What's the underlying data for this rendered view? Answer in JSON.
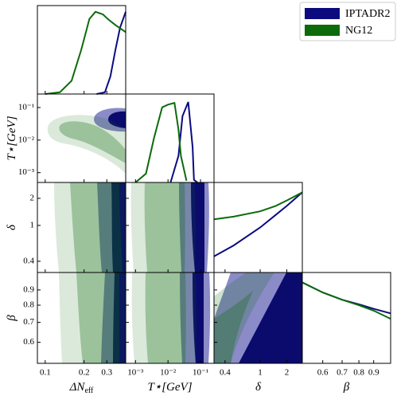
{
  "chart_data": {
    "type": "corner",
    "series": [
      {
        "name": "IPTADR2",
        "color": "#0b0b7f"
      },
      {
        "name": "NG12",
        "color": "#0b6b0b"
      }
    ],
    "params": [
      {
        "label": "ΔN",
        "label_sub": "eff",
        "lim": [
          0.087,
          0.42
        ],
        "log": true,
        "ticks": [
          0.1,
          0.2,
          0.3
        ]
      },
      {
        "label": "T⋆[GeV]",
        "lim": [
          0.0005,
          0.26
        ],
        "log": true,
        "ticks": [
          {
            "value": 0.001,
            "label": "10⁻³"
          },
          {
            "value": 0.01,
            "label": "10⁻²"
          },
          {
            "value": 0.1,
            "label": "10⁻¹"
          }
        ]
      },
      {
        "label": "δ",
        "lim": [
          0.3,
          3.0
        ],
        "log": true,
        "ticks": [
          0.4,
          1,
          2
        ]
      },
      {
        "label": "β",
        "lim": [
          0.51,
          1.03
        ],
        "log": true,
        "ticks": [
          0.6,
          0.7,
          0.8,
          0.9
        ]
      }
    ],
    "diagonals": [
      {
        "curves": [
          {
            "x": [
              0.25,
              0.29,
              0.32,
              0.35,
              0.38,
              0.42
            ],
            "values": [
              0,
              0.02,
              0.2,
              0.5,
              0.75,
              0.93
            ]
          },
          {
            "x": [
              0.1,
              0.13,
              0.16,
              0.19,
              0.22,
              0.245,
              0.28,
              0.31,
              0.35,
              0.42
            ],
            "values": [
              0,
              0.02,
              0.15,
              0.5,
              0.85,
              0.93,
              0.9,
              0.84,
              0.78,
              0.7
            ]
          }
        ]
      },
      {
        "curves": [
          {
            "x": [
              0.012,
              0.021,
              0.028,
              0.042,
              0.057,
              0.063,
              0.08
            ],
            "values": [
              0,
              0.3,
              0.75,
              0.91,
              0.4,
              0.03,
              0
            ]
          },
          {
            "x": [
              0.001,
              0.0021,
              0.0037,
              0.0066,
              0.01,
              0.0158,
              0.021,
              0.025,
              0.037
            ],
            "values": [
              0,
              0.1,
              0.5,
              0.85,
              0.88,
              0.9,
              0.6,
              0.3,
              0.02
            ]
          }
        ]
      },
      {
        "curves": [
          {
            "x": [
              0.3,
              0.5,
              1,
              1.5,
              2,
              3.0
            ],
            "values": [
              0.18,
              0.3,
              0.5,
              0.64,
              0.74,
              0.89
            ]
          },
          {
            "x": [
              0.3,
              0.5,
              1,
              1.5,
              2,
              3.0
            ],
            "values": [
              0.59,
              0.62,
              0.68,
              0.74,
              0.8,
              0.89
            ]
          }
        ]
      },
      {
        "curves": [
          {
            "x": [
              0.51,
              0.6,
              0.7,
              0.8,
              0.9,
              1.03
            ],
            "values": [
              0.89,
              0.78,
              0.7,
              0.65,
              0.6,
              0.55
            ]
          },
          {
            "x": [
              0.51,
              0.6,
              0.7,
              0.8,
              0.9,
              1.03
            ],
            "values": [
              0.89,
              0.78,
              0.7,
              0.64,
              0.58,
              0.49
            ]
          }
        ]
      }
    ]
  }
}
